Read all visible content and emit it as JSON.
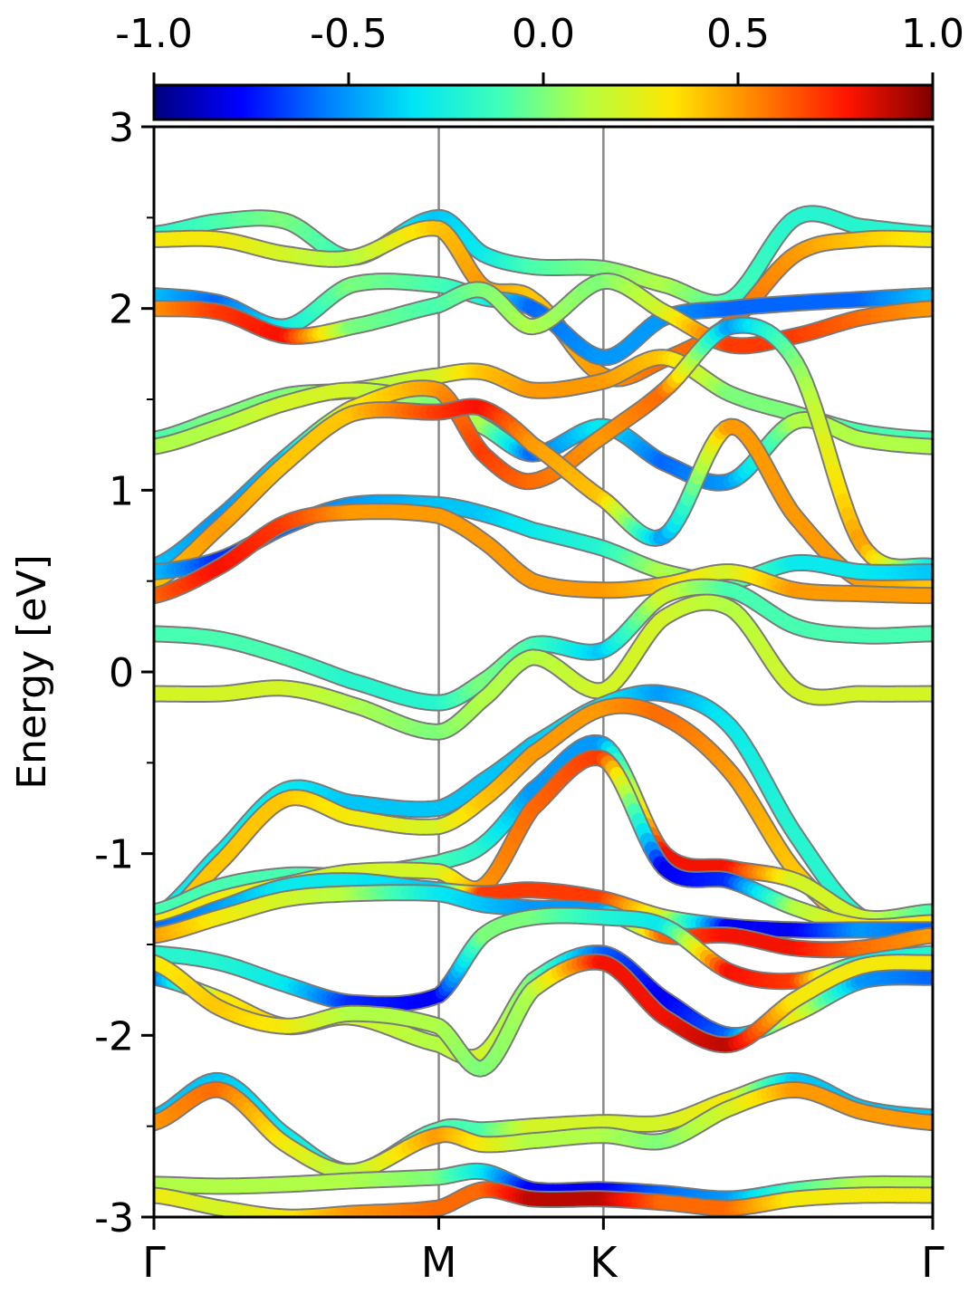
{
  "chart_data": {
    "type": "line",
    "title": "",
    "xlabel": "",
    "ylabel": "Energy [eV]",
    "ylim": [
      -3,
      3
    ],
    "y_ticks": [
      -3,
      -2,
      -1,
      0,
      1,
      2,
      3
    ],
    "y_tick_labels": [
      "-3",
      "-2",
      "-1",
      "0",
      "1",
      "2",
      "3"
    ],
    "y_minor_ticks": [
      -2.5,
      -1.5,
      -0.5,
      0.5,
      1.5,
      2.5
    ],
    "x_range": [
      0,
      4.73
    ],
    "k_points": [
      {
        "label": "Γ",
        "x": 0
      },
      {
        "label": "M",
        "x": 1.73
      },
      {
        "label": "K",
        "x": 2.73
      },
      {
        "label": "Γ",
        "x": 4.73
      }
    ],
    "colorbar": {
      "colormap": "jet",
      "range": [
        -1.0,
        1.0
      ],
      "ticks": [
        -1.0,
        -0.5,
        0.0,
        0.5,
        1.0
      ],
      "tick_labels": [
        "-1.0",
        "-0.5",
        "0.0",
        "0.5",
        "1.0"
      ],
      "stops": [
        "#00007f",
        "#0000ff",
        "#007fff",
        "#00e5f5",
        "#40ffb6",
        "#b6ff40",
        "#ffe500",
        "#ff7f00",
        "#ff1500",
        "#7f0000"
      ]
    },
    "grid": false,
    "series": [
      {
        "x": [
          0,
          0.4,
          0.8,
          1.2,
          1.73,
          2.0,
          2.3,
          2.73,
          3.1,
          3.5,
          3.9,
          4.3,
          4.73
        ],
        "y": [
          2.41,
          2.48,
          2.48,
          2.28,
          2.5,
          2.3,
          2.23,
          2.22,
          2.13,
          2.05,
          2.5,
          2.45,
          2.41
        ],
        "c": [
          -0.2,
          -0.1,
          0.0,
          -0.15,
          -0.4,
          -0.3,
          -0.1,
          0.0,
          0.1,
          -0.1,
          -0.2,
          -0.2,
          -0.2
        ]
      },
      {
        "x": [
          0,
          0.4,
          0.8,
          1.2,
          1.73,
          2.0,
          2.3,
          2.73,
          3.1,
          3.5,
          3.9,
          4.3,
          4.73
        ],
        "y": [
          2.38,
          2.38,
          2.3,
          2.28,
          2.44,
          2.12,
          2.05,
          1.63,
          1.72,
          1.92,
          2.3,
          2.38,
          2.38
        ],
        "c": [
          0.3,
          0.3,
          0.2,
          0.1,
          0.4,
          0.5,
          0.4,
          0.5,
          0.6,
          0.6,
          0.5,
          0.4,
          0.3
        ]
      },
      {
        "x": [
          0,
          0.4,
          0.8,
          1.2,
          1.73,
          2.0,
          2.3,
          2.73,
          3.1,
          3.5,
          3.9,
          4.3,
          4.73
        ],
        "y": [
          2.07,
          2.03,
          1.9,
          2.13,
          2.13,
          2.06,
          2.0,
          1.73,
          1.95,
          2.0,
          2.03,
          2.05,
          2.07
        ],
        "c": [
          -0.4,
          -0.6,
          -0.3,
          0.0,
          -0.1,
          -0.2,
          -0.6,
          -0.5,
          -0.5,
          -0.6,
          -0.6,
          -0.6,
          -0.4
        ]
      },
      {
        "x": [
          0,
          0.4,
          0.8,
          1.2,
          1.73,
          2.0,
          2.3,
          2.73,
          3.1,
          3.5,
          3.9,
          4.3,
          4.73
        ],
        "y": [
          2.0,
          1.98,
          1.85,
          1.9,
          2.02,
          2.1,
          1.9,
          2.15,
          1.98,
          1.8,
          1.85,
          1.95,
          2.0
        ],
        "c": [
          0.5,
          0.7,
          0.8,
          0.0,
          -0.1,
          0.0,
          0.1,
          0.0,
          0.2,
          0.7,
          0.7,
          0.6,
          0.5
        ]
      },
      {
        "x": [
          0,
          0.4,
          0.8,
          1.2,
          1.73,
          2.0,
          2.3,
          2.73,
          3.1,
          3.5,
          3.9,
          4.3,
          4.73
        ],
        "y": [
          1.28,
          1.4,
          1.52,
          1.55,
          1.63,
          1.65,
          1.55,
          1.6,
          1.73,
          1.53,
          1.42,
          1.32,
          1.28
        ],
        "c": [
          -0.1,
          0.0,
          0.0,
          0.1,
          0.2,
          0.4,
          0.5,
          0.5,
          0.4,
          0.0,
          0.0,
          -0.1,
          -0.1
        ]
      },
      {
        "x": [
          0,
          0.4,
          0.8,
          1.2,
          1.73,
          2.0,
          2.3,
          2.73,
          3.1,
          3.5,
          3.9,
          4.3,
          4.73
        ],
        "y": [
          1.24,
          1.35,
          1.48,
          1.55,
          1.48,
          1.35,
          1.2,
          1.35,
          1.15,
          1.05,
          1.38,
          1.28,
          1.24
        ],
        "c": [
          0.1,
          0.1,
          0.2,
          0.2,
          0.0,
          0.1,
          -0.6,
          -0.3,
          -0.6,
          -0.5,
          0.1,
          0.1,
          0.1
        ]
      },
      {
        "x": [
          0,
          0.4,
          0.8,
          1.2,
          1.73,
          2.0,
          2.3,
          2.73,
          3.1,
          3.5,
          3.9,
          4.3,
          4.73
        ],
        "y": [
          0.58,
          0.85,
          1.18,
          1.45,
          1.55,
          1.2,
          1.05,
          1.3,
          1.55,
          1.9,
          1.7,
          0.7,
          0.58
        ],
        "c": [
          -0.4,
          -0.5,
          -0.4,
          0.3,
          0.5,
          0.7,
          0.6,
          0.5,
          0.6,
          -0.5,
          0.0,
          0.5,
          -0.3
        ]
      },
      {
        "x": [
          0,
          0.4,
          0.8,
          1.2,
          1.73,
          2.0,
          2.3,
          2.73,
          3.1,
          3.5,
          3.9,
          4.3,
          4.73
        ],
        "y": [
          0.5,
          0.8,
          1.15,
          1.42,
          1.43,
          1.45,
          1.25,
          0.95,
          0.75,
          1.35,
          0.85,
          0.5,
          0.5
        ],
        "c": [
          0.4,
          0.5,
          0.4,
          0.4,
          0.7,
          0.8,
          0.5,
          0.4,
          -0.5,
          0.5,
          0.5,
          0.5,
          0.4
        ]
      },
      {
        "x": [
          0,
          0.4,
          0.8,
          1.2,
          1.73,
          2.0,
          2.3,
          2.73,
          3.1,
          3.5,
          3.9,
          4.3,
          4.73
        ],
        "y": [
          0.55,
          0.62,
          0.8,
          0.92,
          0.92,
          0.87,
          0.78,
          0.68,
          0.55,
          0.5,
          0.6,
          0.55,
          0.55
        ],
        "c": [
          -0.4,
          -0.7,
          -0.6,
          -0.5,
          -0.4,
          -0.4,
          -0.3,
          -0.2,
          0.1,
          0.0,
          -0.3,
          -0.3,
          -0.4
        ]
      },
      {
        "x": [
          0,
          0.4,
          0.8,
          1.2,
          1.73,
          2.0,
          2.3,
          2.73,
          3.1,
          3.5,
          3.9,
          4.3,
          4.73
        ],
        "y": [
          0.42,
          0.58,
          0.82,
          0.88,
          0.86,
          0.72,
          0.5,
          0.45,
          0.48,
          0.55,
          0.45,
          0.43,
          0.42
        ],
        "c": [
          0.6,
          0.8,
          0.7,
          0.5,
          0.5,
          0.5,
          0.5,
          0.5,
          0.4,
          0.2,
          0.5,
          0.5,
          0.5
        ]
      },
      {
        "x": [
          0,
          0.4,
          0.8,
          1.2,
          1.73,
          2.0,
          2.3,
          2.73,
          3.1,
          3.5,
          3.9,
          4.3,
          4.73
        ],
        "y": [
          0.21,
          0.18,
          0.08,
          -0.05,
          -0.17,
          -0.05,
          0.15,
          0.12,
          0.42,
          0.45,
          0.25,
          0.2,
          0.21
        ],
        "c": [
          -0.1,
          -0.1,
          -0.1,
          -0.2,
          -0.2,
          0.0,
          -0.1,
          -0.4,
          0.2,
          -0.1,
          -0.1,
          -0.1,
          -0.1
        ]
      },
      {
        "x": [
          0,
          0.4,
          0.8,
          1.2,
          1.73,
          2.0,
          2.3,
          2.73,
          3.1,
          3.5,
          3.9,
          4.3,
          4.73
        ],
        "y": [
          -0.12,
          -0.12,
          -0.09,
          -0.18,
          -0.33,
          -0.15,
          0.08,
          -0.1,
          0.3,
          0.35,
          -0.1,
          -0.12,
          -0.12
        ],
        "c": [
          0.2,
          0.2,
          0.2,
          0.1,
          0.0,
          0.1,
          0.1,
          0.2,
          0.2,
          0.1,
          0.2,
          0.2,
          0.2
        ]
      },
      {
        "x": [
          0,
          0.4,
          0.8,
          1.2,
          1.73,
          2.0,
          2.3,
          2.73,
          3.1,
          3.5,
          3.9,
          4.3,
          4.73
        ],
        "y": [
          -1.35,
          -1.0,
          -0.65,
          -0.72,
          -0.75,
          -0.6,
          -0.4,
          -0.18,
          -0.12,
          -0.3,
          -0.9,
          -1.35,
          -1.35
        ],
        "c": [
          -0.3,
          -0.3,
          -0.3,
          -0.4,
          -0.4,
          -0.4,
          -0.4,
          -0.3,
          -0.5,
          -0.3,
          -0.2,
          -0.2,
          -0.3
        ]
      },
      {
        "x": [
          0,
          0.4,
          0.8,
          1.2,
          1.73,
          2.0,
          2.3,
          2.73,
          3.1,
          3.5,
          3.9,
          4.3,
          4.73
        ],
        "y": [
          -1.4,
          -1.05,
          -0.7,
          -0.8,
          -0.85,
          -0.7,
          -0.45,
          -0.2,
          -0.25,
          -0.55,
          -1.1,
          -1.4,
          -1.4
        ],
        "c": [
          0.4,
          0.4,
          0.4,
          0.3,
          0.2,
          0.4,
          0.5,
          0.5,
          0.6,
          0.5,
          0.4,
          0.4,
          0.4
        ]
      },
      {
        "x": [
          0,
          0.4,
          0.8,
          1.2,
          1.73,
          2.0,
          2.3,
          2.73,
          3.1,
          3.5,
          3.9,
          4.3,
          4.73
        ],
        "y": [
          -1.32,
          -1.18,
          -1.12,
          -1.12,
          -1.05,
          -0.95,
          -0.65,
          -0.4,
          -1.0,
          -1.08,
          -1.15,
          -1.35,
          -1.32
        ],
        "c": [
          -0.1,
          -0.1,
          -0.1,
          -0.1,
          -0.1,
          -0.2,
          -0.5,
          -0.5,
          0.8,
          0.8,
          0.2,
          0.2,
          -0.1
        ]
      },
      {
        "x": [
          0,
          0.4,
          0.8,
          1.2,
          1.73,
          2.0,
          2.3,
          2.73,
          3.1,
          3.5,
          3.9,
          4.3,
          4.73
        ],
        "y": [
          -1.38,
          -1.25,
          -1.17,
          -1.1,
          -1.1,
          -1.18,
          -0.75,
          -0.48,
          -1.08,
          -1.15,
          -1.3,
          -1.4,
          -1.38
        ],
        "c": [
          0.3,
          0.3,
          0.2,
          0.2,
          0.2,
          0.5,
          0.6,
          0.7,
          -0.8,
          -0.7,
          0.1,
          0.3,
          0.3
        ]
      },
      {
        "x": [
          0,
          0.4,
          0.8,
          1.2,
          1.73,
          2.0,
          2.3,
          2.73,
          3.1,
          3.5,
          3.9,
          4.3,
          4.73
        ],
        "y": [
          -1.42,
          -1.3,
          -1.18,
          -1.15,
          -1.2,
          -1.22,
          -1.2,
          -1.25,
          -1.35,
          -1.4,
          -1.42,
          -1.42,
          -1.42
        ],
        "c": [
          -0.6,
          -0.5,
          -0.3,
          -0.3,
          -0.4,
          0.7,
          0.7,
          0.7,
          0.2,
          -0.8,
          -0.8,
          -0.5,
          -0.6
        ]
      },
      {
        "x": [
          0,
          0.4,
          0.8,
          1.2,
          1.73,
          2.0,
          2.3,
          2.73,
          3.1,
          3.5,
          3.9,
          4.3,
          4.73
        ],
        "y": [
          -1.45,
          -1.35,
          -1.25,
          -1.22,
          -1.22,
          -1.28,
          -1.3,
          -1.32,
          -1.45,
          -1.45,
          -1.52,
          -1.52,
          -1.45
        ],
        "c": [
          0.5,
          0.3,
          0.2,
          0.1,
          -0.3,
          -0.4,
          -0.5,
          -0.5,
          0.6,
          0.8,
          0.8,
          0.6,
          0.5
        ]
      },
      {
        "x": [
          0,
          0.4,
          0.8,
          1.2,
          1.73,
          2.0,
          2.3,
          2.73,
          3.1,
          3.5,
          3.9,
          4.3,
          4.73
        ],
        "y": [
          -1.55,
          -1.6,
          -1.72,
          -1.82,
          -1.78,
          -1.45,
          -1.35,
          -1.35,
          -1.4,
          -1.65,
          -1.7,
          -1.6,
          -1.55
        ],
        "c": [
          -0.2,
          -0.2,
          -0.3,
          -0.7,
          -0.8,
          0.0,
          0.0,
          -0.2,
          -0.3,
          0.8,
          0.7,
          -0.3,
          -0.2
        ]
      },
      {
        "x": [
          0,
          0.4,
          0.8,
          1.2,
          1.73,
          2.0,
          2.3,
          2.73,
          3.1,
          3.5,
          3.9,
          4.3,
          4.73
        ],
        "y": [
          -1.68,
          -1.8,
          -1.95,
          -1.9,
          -2.05,
          -2.1,
          -1.7,
          -1.55,
          -1.8,
          -2.0,
          -1.88,
          -1.7,
          -1.68
        ],
        "c": [
          -0.6,
          0.3,
          0.4,
          0.2,
          0.1,
          0.2,
          0.0,
          -0.6,
          -0.8,
          -0.6,
          0.3,
          -0.5,
          -0.6
        ]
      },
      {
        "x": [
          0,
          0.4,
          0.8,
          1.2,
          1.73,
          2.0,
          2.3,
          2.73,
          3.1,
          3.5,
          3.9,
          4.3,
          4.73
        ],
        "y": [
          -1.6,
          -1.85,
          -1.95,
          -1.88,
          -1.95,
          -2.18,
          -1.75,
          -1.6,
          -1.9,
          -2.05,
          -1.8,
          -1.62,
          -1.6
        ],
        "c": [
          0.3,
          0.4,
          0.3,
          0.1,
          0.1,
          0.0,
          0.1,
          0.8,
          0.8,
          0.9,
          0.3,
          0.3,
          0.3
        ]
      },
      {
        "x": [
          0,
          0.4,
          0.8,
          1.2,
          1.73,
          2.0,
          2.3,
          2.73,
          3.1,
          3.5,
          3.9,
          4.3,
          4.73
        ],
        "y": [
          -2.45,
          -2.25,
          -2.55,
          -2.75,
          -2.52,
          -2.52,
          -2.5,
          -2.48,
          -2.48,
          -2.35,
          -2.25,
          -2.4,
          -2.45
        ],
        "c": [
          -0.4,
          -0.4,
          -0.3,
          -0.2,
          -0.1,
          -0.1,
          0.2,
          0.2,
          0.2,
          0.3,
          -0.4,
          -0.4,
          -0.4
        ]
      },
      {
        "x": [
          0,
          0.4,
          0.8,
          1.2,
          1.73,
          2.0,
          2.3,
          2.73,
          3.1,
          3.5,
          3.9,
          4.3,
          4.73
        ],
        "y": [
          -2.48,
          -2.3,
          -2.6,
          -2.75,
          -2.55,
          -2.6,
          -2.58,
          -2.55,
          -2.58,
          -2.4,
          -2.3,
          -2.42,
          -2.48
        ],
        "c": [
          0.5,
          0.6,
          0.3,
          0.1,
          0.5,
          0.3,
          0.1,
          0.1,
          0.0,
          0.2,
          0.5,
          0.5,
          0.5
        ]
      },
      {
        "x": [
          0,
          0.4,
          0.8,
          1.2,
          1.73,
          2.0,
          2.3,
          2.73,
          3.1,
          3.5,
          3.9,
          4.3,
          4.73
        ],
        "y": [
          -2.82,
          -2.83,
          -2.82,
          -2.8,
          -2.78,
          -2.75,
          -2.85,
          -2.85,
          -2.87,
          -2.9,
          -2.85,
          -2.82,
          -2.82
        ],
        "c": [
          0.1,
          0.1,
          0.1,
          0.1,
          0.0,
          -0.3,
          -0.8,
          -0.8,
          -0.6,
          -0.5,
          -0.1,
          0.1,
          0.1
        ]
      },
      {
        "x": [
          0,
          0.4,
          0.8,
          1.2,
          1.73,
          2.0,
          2.3,
          2.73,
          3.1,
          3.5,
          3.9,
          4.3,
          4.73
        ],
        "y": [
          -2.88,
          -2.95,
          -3.0,
          -2.98,
          -2.95,
          -2.85,
          -2.9,
          -2.9,
          -2.92,
          -2.95,
          -2.9,
          -2.88,
          -2.88
        ],
        "c": [
          0.3,
          0.2,
          0.3,
          0.5,
          0.6,
          0.6,
          0.9,
          0.9,
          0.6,
          0.6,
          0.3,
          0.3,
          0.3
        ]
      }
    ]
  }
}
